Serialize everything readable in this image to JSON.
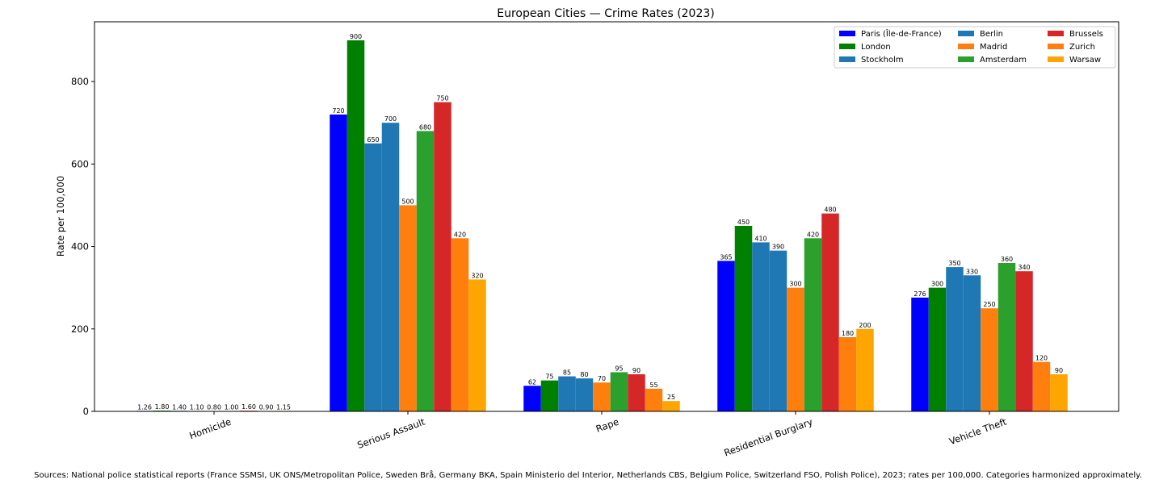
{
  "chart_data": {
    "type": "bar",
    "title": "European Cities — Crime Rates (2023)",
    "xlabel": "",
    "ylabel": "Rate per 100,000",
    "ylim": [
      0,
      945
    ],
    "yticks": [
      0,
      200,
      400,
      600,
      800
    ],
    "grid": false,
    "legend_position": "top-right",
    "categories": [
      "Homicide",
      "Serious Assault",
      "Rape",
      "Residential Burglary",
      "Vehicle Theft"
    ],
    "series": [
      {
        "name": "Paris (Île-de-France)",
        "color": "#0000ff",
        "values": [
          1.26,
          720,
          62,
          365,
          276
        ],
        "labels": [
          "1.26",
          "720",
          "62",
          "365",
          "276"
        ]
      },
      {
        "name": "London",
        "color": "#008000",
        "values": [
          1.8,
          900,
          75,
          450,
          300
        ],
        "labels": [
          "1.80",
          "900",
          "75",
          "450",
          "300"
        ]
      },
      {
        "name": "Stockholm",
        "color": "#1f77b4",
        "values": [
          1.4,
          650,
          85,
          410,
          350
        ],
        "labels": [
          "1.40",
          "650",
          "85",
          "410",
          "350"
        ]
      },
      {
        "name": "Berlin",
        "color": "#1f77b4",
        "values": [
          1.1,
          700,
          80,
          390,
          330
        ],
        "labels": [
          "1.10",
          "700",
          "80",
          "390",
          "330"
        ]
      },
      {
        "name": "Madrid",
        "color": "#ff7f0e",
        "values": [
          0.8,
          500,
          70,
          300,
          250
        ],
        "labels": [
          "0.80",
          "500",
          "70",
          "300",
          "250"
        ]
      },
      {
        "name": "Amsterdam",
        "color": "#2ca02c",
        "values": [
          1.0,
          680,
          95,
          420,
          360
        ],
        "labels": [
          "1.00",
          "680",
          "95",
          "420",
          "360"
        ]
      },
      {
        "name": "Brussels",
        "color": "#d62728",
        "values": [
          1.6,
          750,
          90,
          480,
          340
        ],
        "labels": [
          "1.60",
          "750",
          "90",
          "480",
          "340"
        ]
      },
      {
        "name": "Zurich",
        "color": "#ff7f0e",
        "values": [
          0.9,
          420,
          55,
          180,
          120
        ],
        "labels": [
          "0.90",
          "420",
          "55",
          "180",
          "120"
        ]
      },
      {
        "name": "Warsaw",
        "color": "#ffa500",
        "values": [
          1.15,
          320,
          25,
          200,
          90
        ],
        "labels": [
          "1.15",
          "320",
          "25",
          "200",
          "90"
        ]
      }
    ]
  },
  "footnote": "Sources: National police statistical reports (France SSMSI, UK ONS/Metropolitan Police, Sweden Brå, Germany BKA, Spain Ministerio del Interior, Netherlands CBS, Belgium Police, Switzerland FSO, Polish Police), 2023; rates per 100,000. Categories harmonized approximately."
}
